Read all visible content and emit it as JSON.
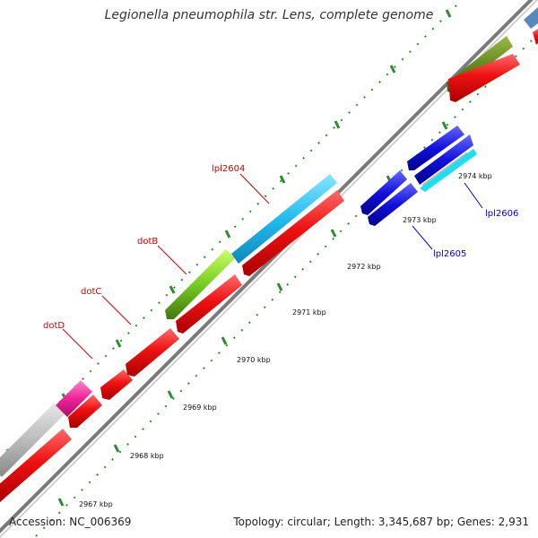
{
  "title": "Legionella pneumophila str. Lens, complete genome",
  "footer": {
    "accession": "Accession: NC_006369",
    "summary": "Topology: circular; Length: 3,345,687 bp; Genes: 2,931"
  },
  "tick_labels": [
    "2967 kbp",
    "2968 kbp",
    "2969 kbp",
    "2970 kbp",
    "2971 kbp",
    "2972 kbp",
    "2973 kbp",
    "2974 kbp"
  ],
  "gene_labels": [
    {
      "text": "dotD",
      "color": "#cc0000"
    },
    {
      "text": "dotC",
      "color": "#cc0000"
    },
    {
      "text": "dotB",
      "color": "#cc0000"
    },
    {
      "text": "lpl2604",
      "color": "#cc0000"
    },
    {
      "text": "lpl2605",
      "color": "#0000cc"
    },
    {
      "text": "lpl2606",
      "color": "#0000cc"
    }
  ],
  "colors": {
    "backbone": "#8a8a8a",
    "cds": "#ee1111",
    "tick": "#339933",
    "lpl2604": "#22bbee",
    "dotB": "#77cc22",
    "magenta": "#ee2299",
    "olive": "#668822",
    "blue": "#1111dd",
    "gray": "#bbbbbb"
  }
}
